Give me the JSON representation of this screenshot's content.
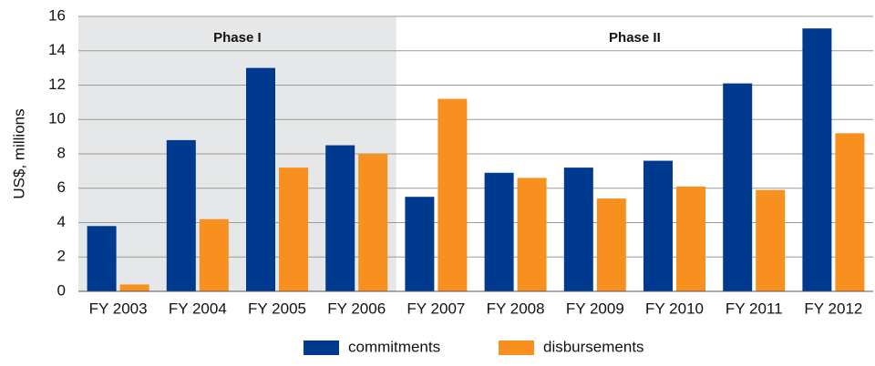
{
  "chart_data": {
    "type": "bar",
    "y_label": "US$, millions",
    "categories": [
      "FY 2003",
      "FY 2004",
      "FY 2005",
      "FY 2006",
      "FY 2007",
      "FY 2008",
      "FY 2009",
      "FY 2010",
      "FY 2011",
      "FY 2012"
    ],
    "series": [
      {
        "name": "commitments",
        "color": "#003a8f",
        "values": [
          3.8,
          8.8,
          13.0,
          8.5,
          5.5,
          6.9,
          7.2,
          7.6,
          12.1,
          15.3
        ]
      },
      {
        "name": "disbursements",
        "color": "#f7901e",
        "values": [
          0.4,
          4.2,
          7.2,
          8.0,
          11.2,
          6.6,
          5.4,
          6.1,
          5.9,
          9.2
        ]
      }
    ],
    "phases": [
      {
        "label": "Phase I",
        "from": "FY 2003",
        "to": "FY 2006",
        "color": "#e6e7e8"
      },
      {
        "label": "Phase II",
        "from": "FY 2007",
        "to": "FY 2012",
        "color": "#ffffff"
      }
    ],
    "ylim": [
      0,
      16
    ],
    "yticks": [
      0,
      2,
      4,
      6,
      8,
      10,
      12,
      14,
      16
    ],
    "grid": true,
    "legend": "bottom"
  }
}
